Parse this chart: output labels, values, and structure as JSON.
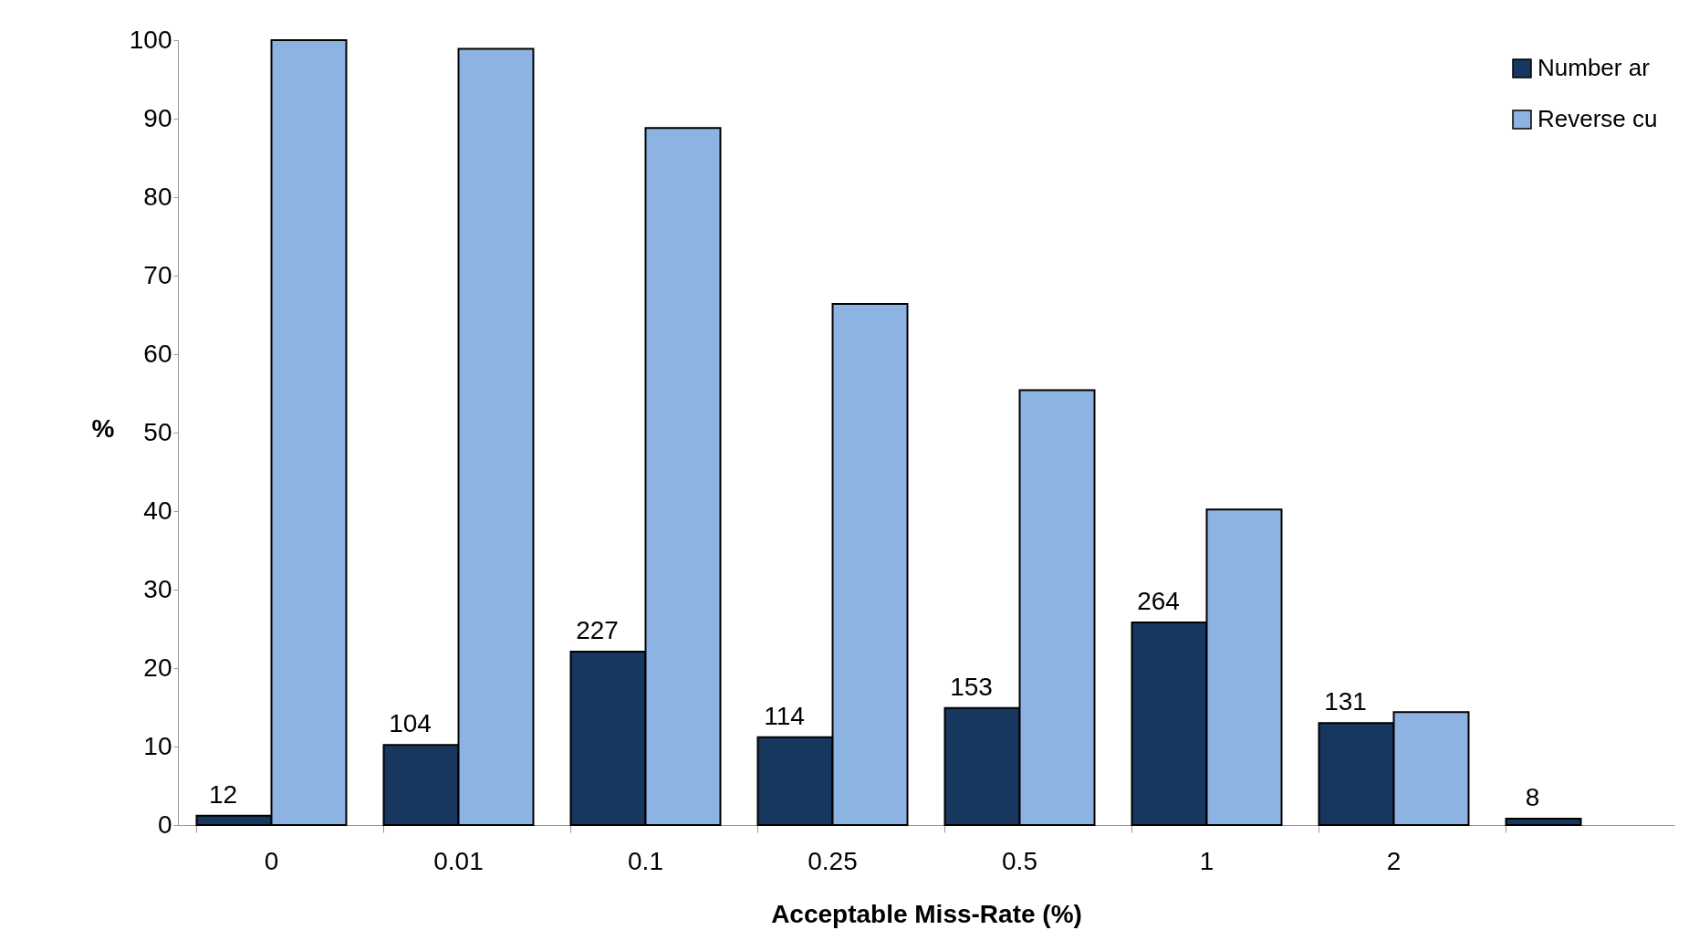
{
  "chart_data": {
    "type": "bar",
    "xlabel": "Acceptable Miss-Rate (%)",
    "ylabel": "%",
    "categories": [
      "0",
      "0.01",
      "0.1",
      "0.25",
      "0.5",
      "1",
      "2",
      null
    ],
    "series": [
      {
        "name": "Number ar",
        "color": "#17375e",
        "values": [
          1.2,
          10.2,
          22.1,
          11.2,
          14.9,
          25.8,
          13.0,
          0.8
        ]
      },
      {
        "name": "Reverse cu",
        "color": "#8db3e2",
        "values": [
          100,
          98.9,
          88.8,
          66.4,
          55.4,
          40.2,
          14.4,
          null
        ]
      }
    ],
    "annotations": [
      {
        "text": "12",
        "x": "0",
        "y": 1.2
      },
      {
        "text": "104",
        "x": "0.01",
        "y": 10.2
      },
      {
        "text": "227",
        "x": "0.1",
        "y": 22.1
      },
      {
        "text": "114",
        "x": "0.25",
        "y": 11.2
      },
      {
        "text": "153",
        "x": "0.5",
        "y": 14.9
      },
      {
        "text": "264",
        "x": "1",
        "y": 25.8
      },
      {
        "text": "131",
        "x": "2",
        "y": 13.0
      },
      {
        "text": "8",
        "y": 0.8
      }
    ],
    "ylim": [
      0,
      100
    ],
    "yticks": [
      0,
      10,
      20,
      30,
      40,
      50,
      60,
      70,
      80,
      90,
      100
    ],
    "grid": false,
    "legend": "top right"
  }
}
